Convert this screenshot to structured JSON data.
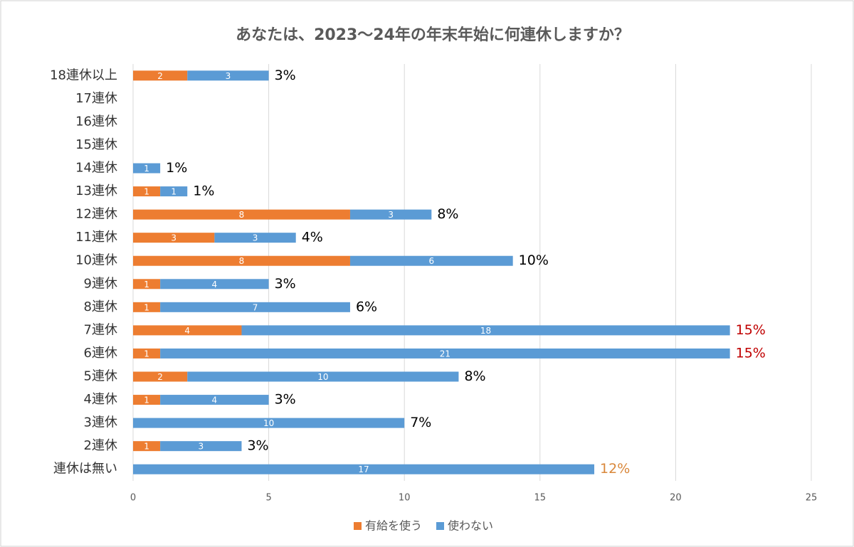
{
  "chart_data": {
    "type": "stacked-barh",
    "title": "あなたは、2023～24年の年末年始に何連休しますか？",
    "categories": [
      "18連休以上",
      "17連休",
      "16連休",
      "15連休",
      "14連休",
      "13連休",
      "12連休",
      "11連休",
      "10連休",
      "9連休",
      "8連休",
      "7連休",
      "6連休",
      "5連休",
      "4連休",
      "3連休",
      "2連休",
      "連休は無い"
    ],
    "series": [
      {
        "name": "有給を使う",
        "color": "#ed7d31",
        "values": [
          2,
          null,
          null,
          null,
          null,
          1,
          8,
          3,
          8,
          1,
          1,
          4,
          1,
          2,
          1,
          null,
          1,
          null
        ]
      },
      {
        "name": "使わない",
        "color": "#5b9bd5",
        "values": [
          3,
          null,
          null,
          null,
          1,
          1,
          3,
          3,
          6,
          4,
          7,
          18,
          21,
          10,
          4,
          10,
          3,
          17
        ]
      }
    ],
    "totals": {
      "values": [
        3,
        null,
        null,
        null,
        1,
        1,
        8,
        4,
        10,
        3,
        6,
        15,
        15,
        8,
        3,
        7,
        3,
        12
      ],
      "value_labels": [
        "3%",
        null,
        null,
        null,
        "1%",
        "1%",
        "8%",
        "4%",
        "10%",
        "3%",
        "6%",
        "15%",
        "15%",
        "8%",
        "3%",
        "7%",
        "3%",
        "12%"
      ],
      "colors": [
        "#000000",
        null,
        null,
        null,
        "#000000",
        "#000000",
        "#000000",
        "#000000",
        "#000000",
        "#000000",
        "#000000",
        "#c00000",
        "#c00000",
        "#000000",
        "#000000",
        "#000000",
        "#000000",
        "#d9873a"
      ]
    },
    "xlim": [
      0,
      25
    ],
    "xticks": [
      0,
      5,
      10,
      15,
      20,
      25
    ],
    "grid": true,
    "legend": "bottom"
  }
}
